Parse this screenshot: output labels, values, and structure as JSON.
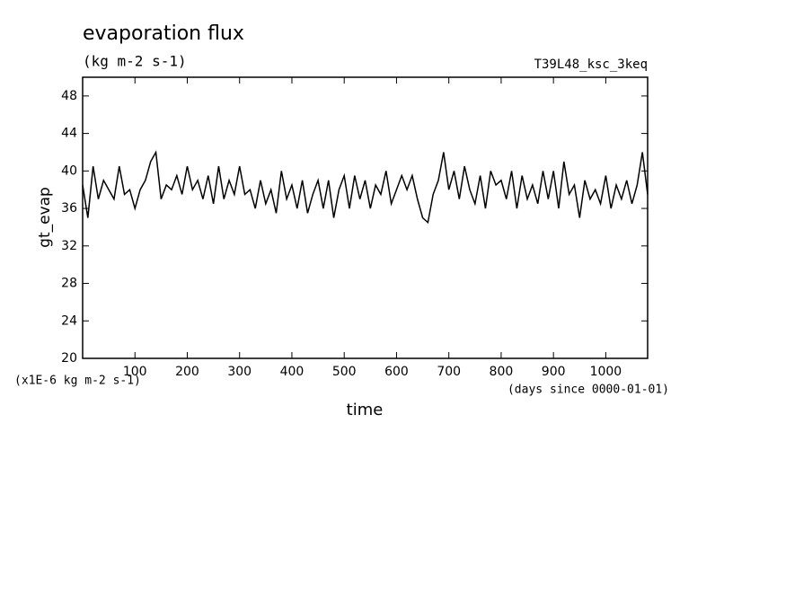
{
  "chart_data": {
    "type": "line",
    "title": "evaporation flux",
    "subtitle": "(kg m-2 s-1)",
    "annotation": "T39L48_ksc_3keq",
    "y_label": "gt_evap",
    "x_label": "time",
    "y_unit_label": "(x1E-6 kg m-2 s-1)",
    "x_unit_label": "(days since 0000-01-01)",
    "x": [
      0,
      10,
      20,
      30,
      40,
      50,
      60,
      70,
      80,
      90,
      100,
      110,
      120,
      130,
      140,
      150,
      160,
      170,
      180,
      190,
      200,
      210,
      220,
      230,
      240,
      250,
      260,
      270,
      280,
      290,
      300,
      310,
      320,
      330,
      340,
      350,
      360,
      370,
      380,
      390,
      400,
      410,
      420,
      430,
      440,
      450,
      460,
      470,
      480,
      490,
      500,
      510,
      520,
      530,
      540,
      550,
      560,
      570,
      580,
      590,
      600,
      610,
      620,
      630,
      640,
      650,
      660,
      670,
      680,
      690,
      700,
      710,
      720,
      730,
      740,
      750,
      760,
      770,
      780,
      790,
      800,
      810,
      820,
      830,
      840,
      850,
      860,
      870,
      880,
      890,
      900,
      910,
      920,
      930,
      940,
      950,
      960,
      970,
      980,
      990,
      1000,
      1010,
      1020,
      1030,
      1040,
      1050,
      1060,
      1070,
      1080
    ],
    "series": [
      {
        "color": "#000000",
        "values": [
          38.5,
          35,
          40.5,
          37,
          39,
          38,
          37,
          40.5,
          37.5,
          38,
          36,
          38,
          39,
          41,
          42,
          37,
          38.5,
          38,
          39.5,
          37.5,
          40.5,
          38,
          39,
          37,
          39.5,
          36.5,
          40.5,
          37,
          39,
          37.5,
          40.5,
          37.5,
          38,
          36,
          39,
          36.5,
          38,
          35.5,
          40,
          37,
          38.5,
          36,
          39,
          35.5,
          37.5,
          39,
          36,
          39,
          35,
          38,
          39.5,
          36,
          39.5,
          37,
          39,
          36,
          38.5,
          37.5,
          40,
          36.5,
          38,
          39.5,
          38,
          39.5,
          37,
          35,
          34.5,
          37.5,
          39,
          42,
          38,
          40,
          37,
          40.5,
          38,
          36.5,
          39.5,
          36,
          40,
          38.5,
          39,
          37,
          40,
          36,
          39.5,
          37,
          38.5,
          36.5,
          40,
          37,
          40,
          36,
          41,
          37.5,
          38.5,
          35,
          39,
          37,
          38,
          36.5,
          39.5,
          36,
          38.5,
          37,
          39,
          36.5,
          38.5,
          42,
          37.5
        ]
      }
    ],
    "xlim": [
      0,
      1080
    ],
    "xticks": [
      100,
      200,
      300,
      400,
      500,
      600,
      700,
      800,
      900,
      1000
    ],
    "ylim": [
      20,
      50
    ],
    "yticks": [
      20,
      24,
      28,
      32,
      36,
      40,
      44,
      48
    ]
  }
}
